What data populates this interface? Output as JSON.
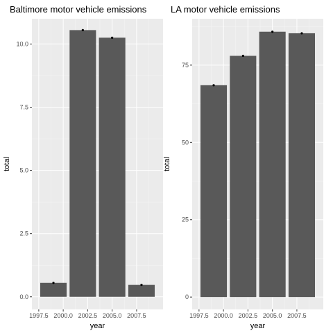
{
  "chart_data": [
    {
      "type": "bar",
      "title": "Baltimore motor vehicle emissions",
      "xlabel": "year",
      "ylabel": "total",
      "x": [
        1999,
        2002,
        2005,
        2008
      ],
      "values": [
        0.55,
        10.55,
        10.25,
        0.47
      ],
      "xlim": [
        1996.8,
        2010.2
      ],
      "ylim": [
        -0.5,
        11.0
      ],
      "xticks": [
        1997.5,
        2000.0,
        2002.5,
        2005.0,
        2007.5
      ],
      "xtick_labels": [
        "1997.5",
        "2000.0",
        "2002.5",
        "2005.0",
        "2007.5"
      ],
      "yticks": [
        0.0,
        2.5,
        5.0,
        7.5,
        10.0
      ],
      "ytick_labels": [
        "0.0",
        "2.5",
        "5.0",
        "7.5",
        "10.0"
      ],
      "grid": true,
      "legend": "none"
    },
    {
      "type": "bar",
      "title": "LA motor vehicle emissions",
      "xlabel": "year",
      "ylabel": "total",
      "x": [
        1999,
        2002,
        2005,
        2008
      ],
      "values": [
        68.5,
        78.0,
        85.8,
        85.3
      ],
      "xlim": [
        1996.8,
        2010.2
      ],
      "ylim": [
        -4,
        90
      ],
      "xticks": [
        1997.5,
        2000.0,
        2002.5,
        2005.0,
        2007.5
      ],
      "xtick_labels": [
        "1997.5",
        "2000.0",
        "2002.5",
        "2005.0",
        "2007.5"
      ],
      "yticks": [
        0,
        25,
        50,
        75
      ],
      "ytick_labels": [
        "0",
        "25",
        "50",
        "75"
      ],
      "grid": true,
      "legend": "none"
    }
  ],
  "colors": {
    "panel_background": "#ebebeb",
    "grid": "#ffffff",
    "bar_fill": "#595959",
    "marker": "#000000",
    "text": "#000000",
    "tick_text": "#4d4d4d"
  }
}
